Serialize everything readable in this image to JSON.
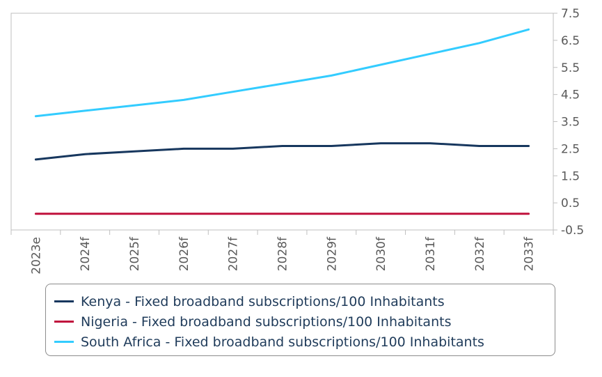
{
  "chart_data": {
    "type": "line",
    "categories": [
      "2023e",
      "2024f",
      "2025f",
      "2026f",
      "2027f",
      "2028f",
      "2029f",
      "2030f",
      "2031f",
      "2032f",
      "2033f"
    ],
    "series": [
      {
        "name": "Kenya - Fixed broadband subscriptions/100 Inhabitants",
        "color": "#17375e",
        "values": [
          2.1,
          2.3,
          2.4,
          2.5,
          2.5,
          2.6,
          2.6,
          2.7,
          2.7,
          2.6,
          2.6
        ]
      },
      {
        "name": "Nigeria - Fixed broadband subscriptions/100 Inhabitants",
        "color": "#c0103c",
        "values": [
          0.1,
          0.1,
          0.1,
          0.1,
          0.1,
          0.1,
          0.1,
          0.1,
          0.1,
          0.1,
          0.1
        ]
      },
      {
        "name": "South Africa - Fixed broadband subscriptions/100 Inhabitants",
        "color": "#33ccff",
        "values": [
          3.7,
          3.9,
          4.1,
          4.3,
          4.6,
          4.9,
          5.2,
          5.6,
          6.0,
          6.4,
          6.9
        ]
      }
    ],
    "y_ticks": [
      "7.5",
      "6.5",
      "5.5",
      "4.5",
      "3.5",
      "2.5",
      "1.5",
      "0.5",
      "-0.5"
    ],
    "ylim": [
      -0.5,
      7.5
    ],
    "y_axis_side": "right",
    "grid": false,
    "legend_position": "bottom",
    "title": "",
    "xlabel": "",
    "ylabel": ""
  }
}
